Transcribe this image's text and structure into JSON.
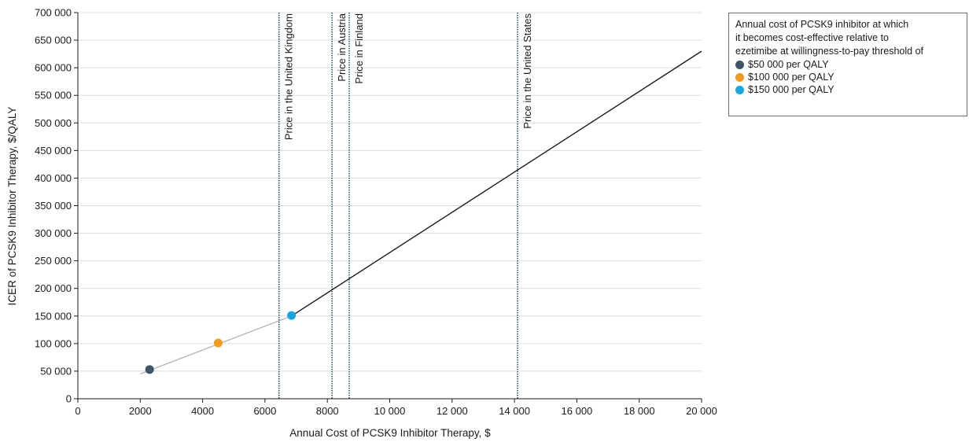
{
  "chart_data": {
    "type": "line",
    "xlabel": "Annual Cost of PCSK9 Inhibitor Therapy, $",
    "ylabel": "ICER of PCSK9 Inhibitor Therapy, $/QALY",
    "xlim": [
      0,
      20000
    ],
    "ylim": [
      0,
      700000
    ],
    "x_ticks": [
      0,
      2000,
      4000,
      6000,
      8000,
      10000,
      12000,
      14000,
      16000,
      18000,
      20000
    ],
    "x_tick_labels": [
      "0",
      "2000",
      "4000",
      "6000",
      "8000",
      "10 000",
      "12 000",
      "14 000",
      "16 000",
      "18 000",
      "20 000"
    ],
    "y_ticks": [
      0,
      50000,
      100000,
      150000,
      200000,
      250000,
      300000,
      350000,
      400000,
      450000,
      500000,
      550000,
      600000,
      650000,
      700000
    ],
    "y_tick_labels": [
      "0",
      "50 000",
      "100 000",
      "150 000",
      "200 000",
      "250 000",
      "300 000",
      "350 000",
      "400 000",
      "450 000",
      "500 000",
      "550 000",
      "600 000",
      "650 000",
      "700 000"
    ],
    "grid": "horizontal",
    "legend_position": "right",
    "series": [
      {
        "kind": "line-gray",
        "color": "#b0b0b0",
        "x": [
          2000,
          6850
        ],
        "y": [
          45000,
          150000
        ]
      },
      {
        "kind": "line-black",
        "color": "#1a1a1a",
        "x": [
          6850,
          20000
        ],
        "y": [
          150000,
          630000
        ]
      }
    ],
    "points": [
      {
        "x": 2300,
        "y": 53000,
        "color": "#3d5566"
      },
      {
        "x": 4500,
        "y": 101000,
        "color": "#f29a1e"
      },
      {
        "x": 6850,
        "y": 151000,
        "color": "#17a6e0"
      }
    ],
    "vlines": [
      {
        "x": 6450,
        "label": "Price in the United Kingdom"
      },
      {
        "x": 8150,
        "label": "Price in Austria"
      },
      {
        "x": 8700,
        "label": "Price in Finland"
      },
      {
        "x": 14100,
        "label": "Price in the United States"
      }
    ],
    "vline_color": "#2a4a5c"
  },
  "legend": {
    "title_lines": [
      "Annual cost of PCSK9 inhibitor at which",
      "it becomes cost-effective relative to",
      "ezetimibe at willingness-to-pay threshold of"
    ],
    "items": [
      {
        "label": "$50 000 per QALY",
        "color": "#3d5566"
      },
      {
        "label": "$100 000 per QALY",
        "color": "#f29a1e"
      },
      {
        "label": "$150 000 per QALY",
        "color": "#17a6e0"
      }
    ]
  }
}
